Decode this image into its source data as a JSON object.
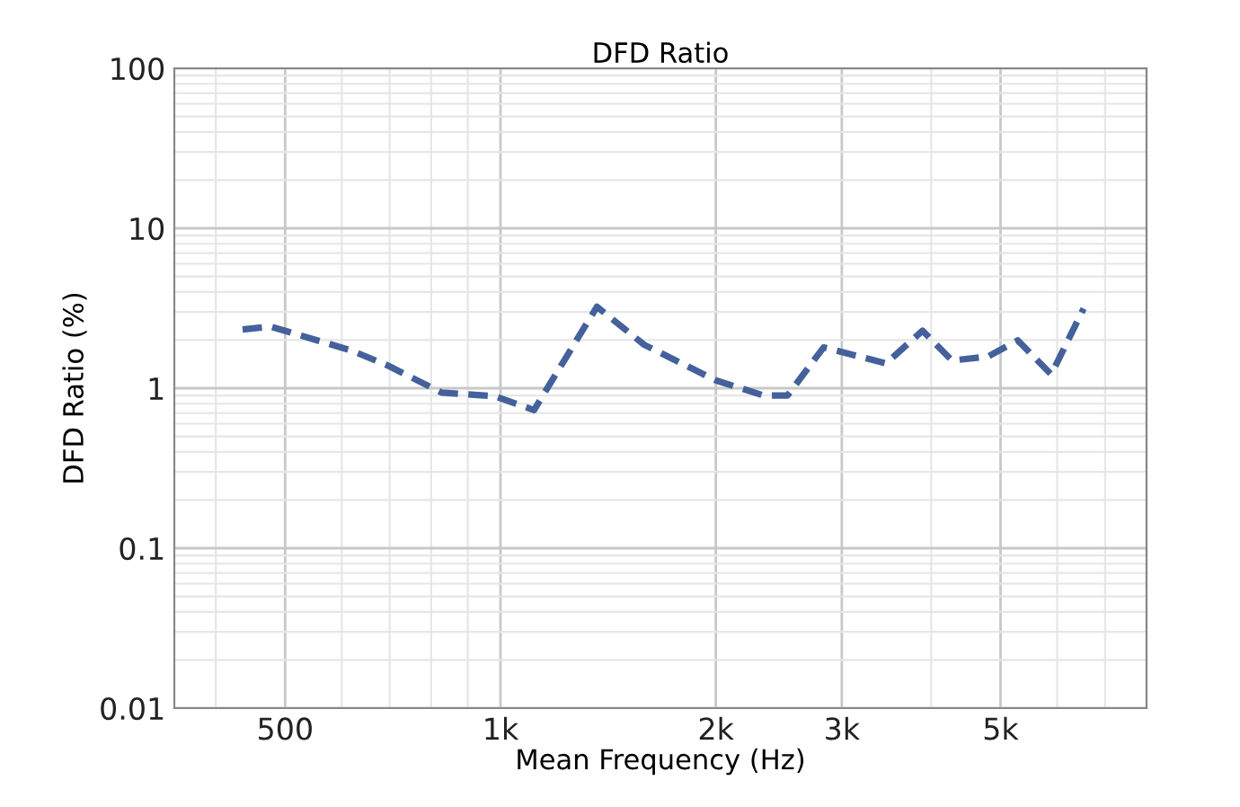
{
  "chart_data": {
    "type": "line",
    "title": "DFD Ratio",
    "xlabel": "Mean Frequency (Hz)",
    "ylabel": "DFD Ratio (%)",
    "log": "xy",
    "xlim": [
      350,
      8000
    ],
    "ylim": [
      0.01,
      100
    ],
    "xticks": [
      500,
      {
        "value": 1000,
        "label": "1k"
      },
      {
        "value": 2000,
        "label": "2k"
      },
      {
        "value": 3000,
        "label": "3k"
      },
      {
        "value": 5000,
        "label": "5k"
      }
    ],
    "yticks": [
      0.01,
      0.1,
      1,
      10,
      100
    ],
    "grid": true,
    "line_style": "dashed",
    "marker": "none",
    "series": [
      {
        "color": "#44619b",
        "x": [
          436,
          477,
          619,
          695,
          827,
          983,
          1114,
          1364,
          1588,
          2000,
          2334,
          2519,
          2829,
          3459,
          3890,
          4277,
          4804,
          5285,
          5887,
          6533
        ],
        "values": [
          2.33,
          2.43,
          1.72,
          1.39,
          0.94,
          0.89,
          0.73,
          3.23,
          1.87,
          1.12,
          0.9,
          0.9,
          1.8,
          1.43,
          2.29,
          1.49,
          1.58,
          1.99,
          1.22,
          3.15
        ]
      }
    ]
  }
}
